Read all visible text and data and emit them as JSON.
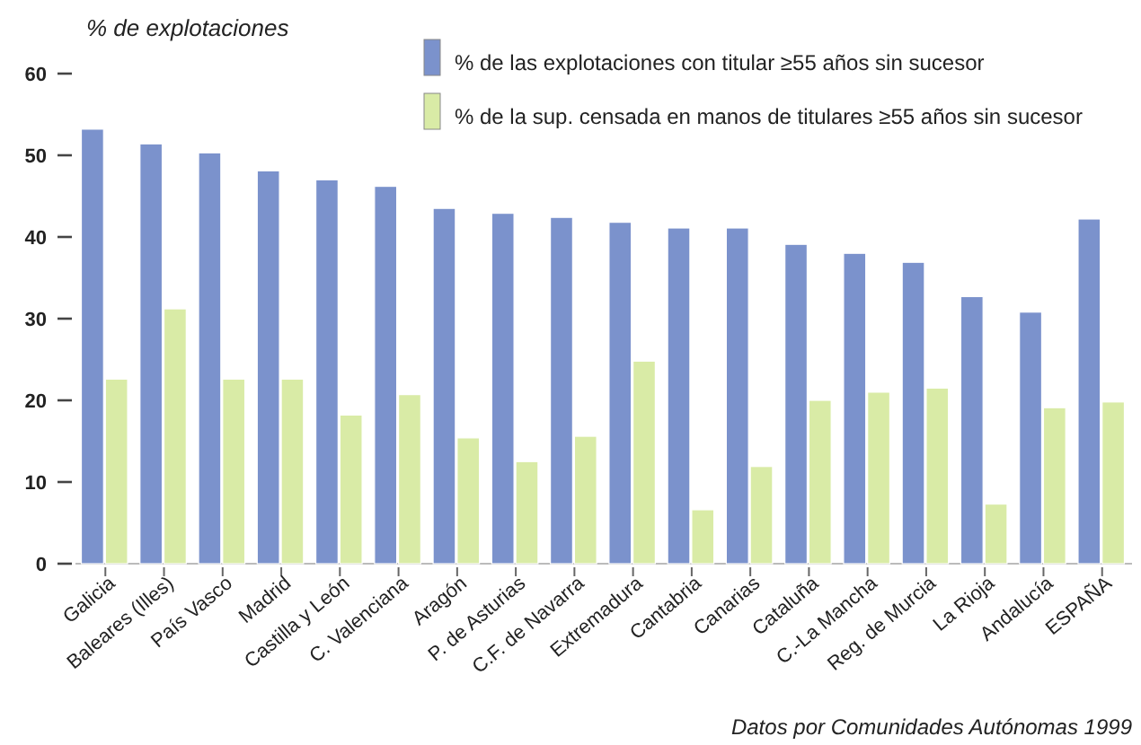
{
  "chart_data": {
    "type": "bar",
    "ylabel": "% de explotaciones",
    "categories": [
      "Galicia",
      "Baleares (Illes)",
      "País Vasco",
      "Madrid",
      "Castilla y León",
      "C. Valenciana",
      "Aragón",
      "P. de Asturias",
      "C.F. de Navarra",
      "Extremadura",
      "Cantabria",
      "Canarias",
      "Cataluña",
      "C.-La Mancha",
      "Reg. de Murcia",
      "La Rioja",
      "Andalucía",
      "ESPAÑA"
    ],
    "series": [
      {
        "name": "% de las explotaciones con titular ≥55 años sin sucesor",
        "color": "#7b92cc",
        "values": [
          53.2,
          51.4,
          50.3,
          48.1,
          47,
          46.2,
          43.5,
          42.9,
          42.4,
          41.8,
          41.1,
          41.1,
          39.1,
          38,
          36.9,
          32.7,
          30.8,
          42.2
        ]
      },
      {
        "name": "% de la sup. censada en manos de titulares ≥55 años sin sucesor",
        "color": "#d9eba6",
        "values": [
          22.6,
          31.2,
          22.6,
          22.6,
          18.2,
          20.7,
          15.4,
          12.5,
          15.6,
          24.8,
          6.6,
          11.9,
          20,
          21,
          21.5,
          7.3,
          19.1,
          19.8
        ]
      }
    ],
    "ylim": [
      0,
      60
    ],
    "yticks": [
      0,
      10,
      20,
      30,
      40,
      50,
      60
    ],
    "grid": false,
    "legend": "top right",
    "annotations": [
      "Datos por Comunidades Autónomas 1999"
    ]
  }
}
